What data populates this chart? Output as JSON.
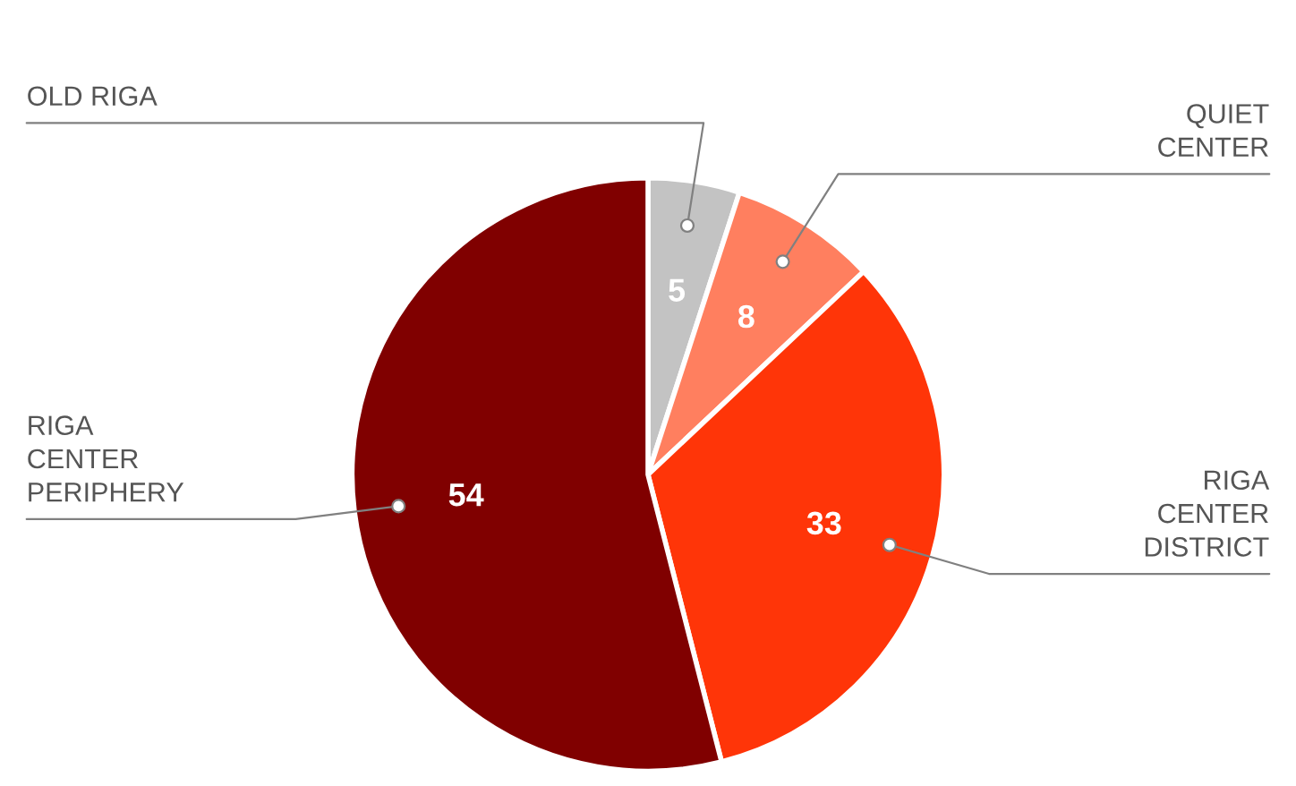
{
  "chart_data": {
    "type": "pie",
    "categories": [
      "OLD RIGA",
      "QUIET CENTER",
      "RIGA CENTER DISTRICT",
      "RIGA CENTER PERIPHERY"
    ],
    "values": [
      5,
      8,
      33,
      54
    ],
    "colors": [
      "#c3c3c3",
      "#ff7f5f",
      "#ff3508",
      "#800000"
    ],
    "data_labels": true,
    "legend": false
  }
}
